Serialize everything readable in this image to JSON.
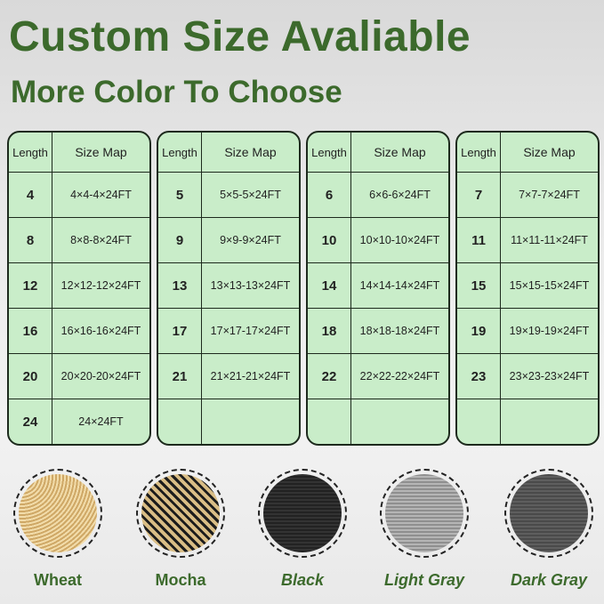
{
  "title": "Custom Size Avaliable",
  "subtitle": "More Color To Choose",
  "header": {
    "length": "Length",
    "size_map": "Size Map"
  },
  "tables": [
    {
      "rows": [
        [
          "4",
          "4×4-4×24FT"
        ],
        [
          "8",
          "8×8-8×24FT"
        ],
        [
          "12",
          "12×12-12×24FT"
        ],
        [
          "16",
          "16×16-16×24FT"
        ],
        [
          "20",
          "20×20-20×24FT"
        ],
        [
          "24",
          "24×24FT"
        ]
      ]
    },
    {
      "rows": [
        [
          "5",
          "5×5-5×24FT"
        ],
        [
          "9",
          "9×9-9×24FT"
        ],
        [
          "13",
          "13×13-13×24FT"
        ],
        [
          "17",
          "17×17-17×24FT"
        ],
        [
          "21",
          "21×21-21×24FT"
        ],
        [
          "",
          ""
        ]
      ]
    },
    {
      "rows": [
        [
          "6",
          "6×6-6×24FT"
        ],
        [
          "10",
          "10×10-10×24FT"
        ],
        [
          "14",
          "14×14-14×24FT"
        ],
        [
          "18",
          "18×18-18×24FT"
        ],
        [
          "22",
          "22×22-22×24FT"
        ],
        [
          "",
          ""
        ]
      ]
    },
    {
      "rows": [
        [
          "7",
          "7×7-7×24FT"
        ],
        [
          "11",
          "11×11-11×24FT"
        ],
        [
          "15",
          "15×15-15×24FT"
        ],
        [
          "19",
          "19×19-19×24FT"
        ],
        [
          "23",
          "23×23-23×24FT"
        ],
        [
          "",
          ""
        ]
      ]
    }
  ],
  "colors": [
    {
      "name": "Wheat",
      "hex": "#d9b97c"
    },
    {
      "name": "Mocha",
      "hex": "#8a7450"
    },
    {
      "name": "Black",
      "hex": "#2a2a2a"
    },
    {
      "name": "Light Gray",
      "hex": "#a9a9a9"
    },
    {
      "name": "Dark Gray",
      "hex": "#5a5a5a"
    }
  ],
  "accent": "#3c6a2c",
  "table_bg": "#c9edc9"
}
